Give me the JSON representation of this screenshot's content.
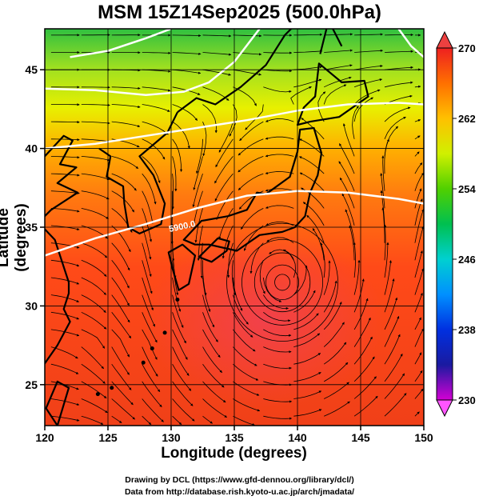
{
  "title": "MSM 15Z14Sep2025 (500.0hPa)",
  "x_axis": {
    "label": "Longitude (degrees)",
    "ticks": [
      120,
      125,
      130,
      135,
      140,
      145,
      150
    ],
    "range": [
      120,
      150
    ]
  },
  "y_axis": {
    "label": "Latitude  (degrees)",
    "ticks": [
      25,
      30,
      35,
      40,
      45
    ],
    "range": [
      22.4,
      47.6
    ]
  },
  "colorbar": {
    "ticks": [
      230,
      238,
      246,
      254,
      262,
      270
    ],
    "range": [
      230,
      270
    ],
    "colors": [
      "#d400d4",
      "#1a1aa0",
      "#0050ff",
      "#00b4ff",
      "#00e0a0",
      "#00c040",
      "#70d800",
      "#d8f000",
      "#ffc800",
      "#ff8c00",
      "#ff5000",
      "#ee2020"
    ]
  },
  "contour": {
    "label": "5900.0",
    "color": "#ffffff"
  },
  "credits": [
    "Drawing by DCL (https://www.gfd-dennou.org/library/dcl/)",
    "Data from http://database.rish.kyoto-u.ac.jp/arch/jmadata/"
  ]
}
